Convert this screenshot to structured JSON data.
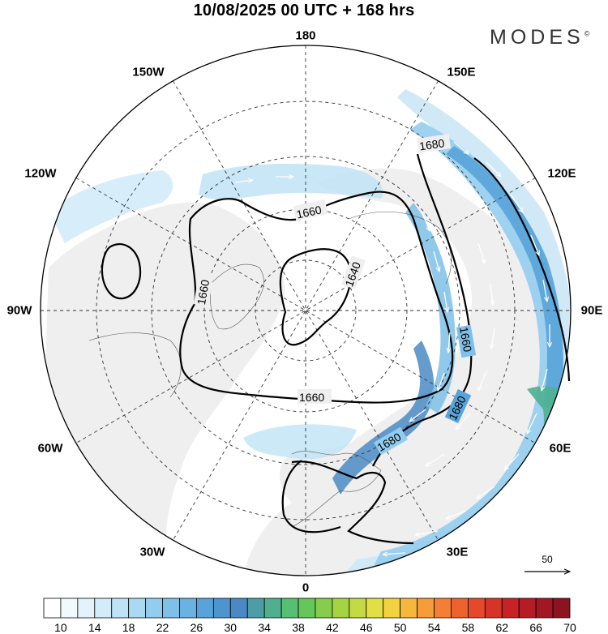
{
  "title": "10/08/2025  00 UTC  + 168 hrs",
  "logo": "MODES",
  "logo_mark": "©",
  "grid_labels": {
    "lon_180": "180",
    "lon_150w": "150W",
    "lon_150e": "150E",
    "lon_120w": "120W",
    "lon_120e": "120E",
    "lon_90w": "90W",
    "lon_90e": "90E",
    "lon_60w": "60W",
    "lon_60e": "60E",
    "lon_30w": "30W",
    "lon_30e": "30E",
    "lon_0": "0"
  },
  "contours": {
    "label_1640": "1640",
    "label_1660": "1660",
    "label_1680": "1680"
  },
  "vector_reference": "50",
  "colorbar": {
    "tick_labels": [
      "10",
      "14",
      "18",
      "22",
      "26",
      "30",
      "34",
      "38",
      "42",
      "46",
      "50",
      "54",
      "58",
      "62",
      "66",
      "70"
    ],
    "colors": [
      "#ffffff",
      "#f2f9fd",
      "#e4f3fb",
      "#d3ecf9",
      "#bfe3f6",
      "#aad9f2",
      "#93cdee",
      "#7ec0e8",
      "#6ab2e1",
      "#58a3d9",
      "#4e94ce",
      "#4a89c4",
      "#4b9ea5",
      "#4fb090",
      "#56bf73",
      "#67c65a",
      "#84cd4d",
      "#a4d444",
      "#c4da44",
      "#e1df45",
      "#f2d241",
      "#f5b83c",
      "#f69c38",
      "#f47f34",
      "#ee6230",
      "#e4492c",
      "#d73428",
      "#c72326",
      "#b51c24",
      "#a11723",
      "#8c1420"
    ]
  }
}
